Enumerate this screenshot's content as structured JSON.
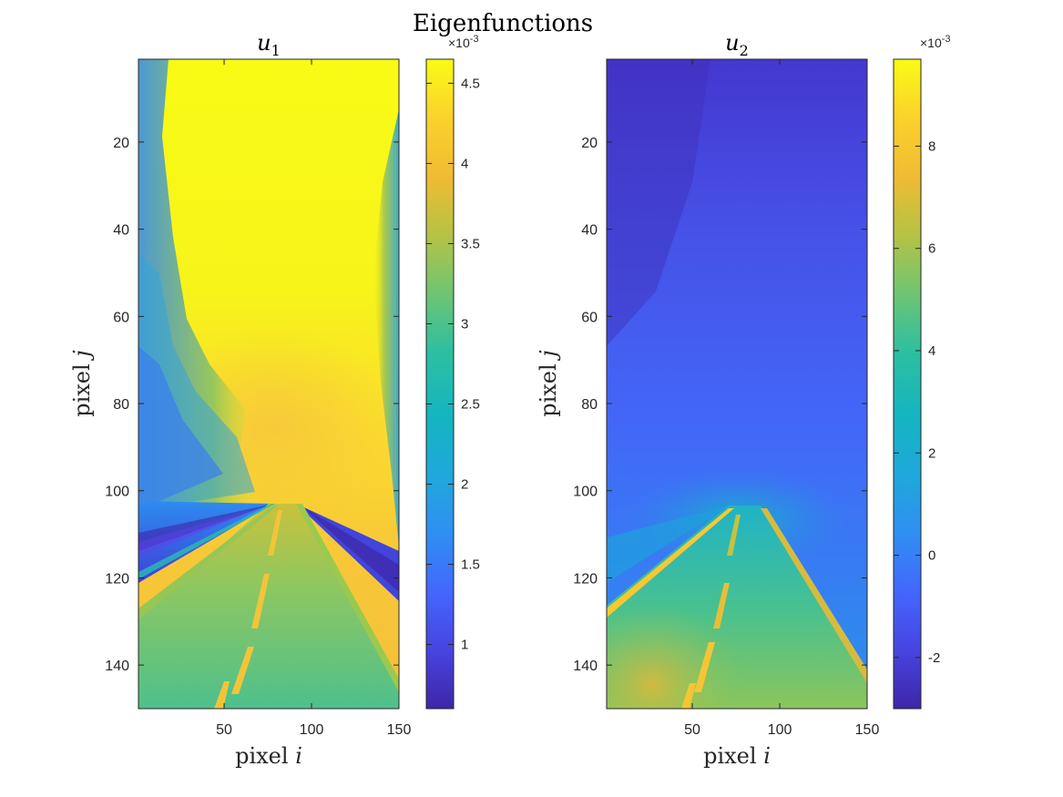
{
  "figure": {
    "title": "Eigenfunctions"
  },
  "colors": {
    "parula": [
      "#3e26a8",
      "#4744e1",
      "#4367fd",
      "#2f8ff2",
      "#1fa8db",
      "#14b5c1",
      "#2dbfa0",
      "#70c472",
      "#b5c344",
      "#f1bb33",
      "#fbd22b",
      "#f9fb15"
    ],
    "axis": "#262626"
  },
  "chart_data": [
    {
      "type": "heatmap",
      "title": "u",
      "title_sub": "1",
      "xlabel_text": "pixel ",
      "xlabel_var": "i",
      "ylabel_text": "pixel ",
      "ylabel_var": "j",
      "xlim": [
        1,
        150
      ],
      "ylim": [
        1,
        150
      ],
      "y_reversed": true,
      "xticks": [
        50,
        100,
        150
      ],
      "yticks": [
        20,
        40,
        60,
        80,
        100,
        120,
        140
      ],
      "colorbar": {
        "range": [
          0.6,
          4.65
        ],
        "ticks": [
          1,
          1.5,
          2,
          2.5,
          3,
          3.5,
          4,
          4.5
        ],
        "tick_labels": [
          "1",
          "1.5",
          "2",
          "2.5",
          "3",
          "3.5",
          "4",
          "4.5"
        ],
        "exponent_base": "×10",
        "exponent": "-3"
      },
      "description_values": {
        "sky": 4.6,
        "haze": 4.2,
        "road_surface": 3.0,
        "center_line": 4.0,
        "shoulders": 2.0,
        "trees_dark": 0.8
      }
    },
    {
      "type": "heatmap",
      "title": "u",
      "title_sub": "2",
      "xlabel_text": "pixel ",
      "xlabel_var": "i",
      "ylabel_text": "pixel ",
      "ylabel_var": "j",
      "xlim": [
        1,
        150
      ],
      "ylim": [
        1,
        150
      ],
      "y_reversed": true,
      "xticks": [
        50,
        100,
        150
      ],
      "yticks": [
        20,
        40,
        60,
        80,
        100,
        120,
        140
      ],
      "colorbar": {
        "range": [
          -3,
          9.7
        ],
        "ticks": [
          -2,
          0,
          2,
          4,
          6,
          8
        ],
        "tick_labels": [
          "-2",
          "0",
          "2",
          "4",
          "6",
          "8"
        ],
        "exponent_base": "×10",
        "exponent": "-3"
      },
      "description_values": {
        "sky_top": -2.2,
        "sky_low": 0.5,
        "horizon": 3.0,
        "road_surface": 5.0,
        "center_line": 8.5,
        "edge_line": 9.0
      }
    }
  ]
}
